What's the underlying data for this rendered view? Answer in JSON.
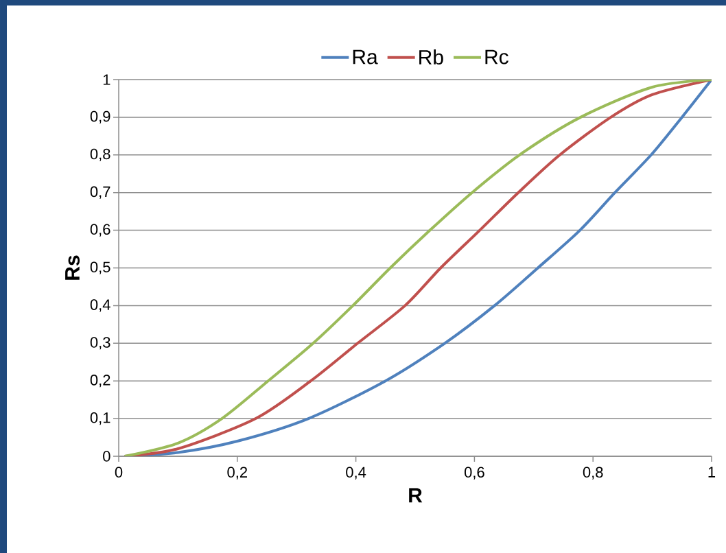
{
  "chart_data": {
    "type": "line",
    "xlabel": "R",
    "ylabel": "Rs",
    "series": [
      {
        "name": "Ra",
        "color": "#4f81bd",
        "x": [
          0.01,
          0.1,
          0.2,
          0.32,
          0.45,
          0.55,
          0.634,
          0.707,
          0.778,
          0.837,
          0.898,
          0.95,
          1
        ],
        "values": [
          0,
          0.01,
          0.04,
          0.1,
          0.2,
          0.3,
          0.4,
          0.5,
          0.6,
          0.7,
          0.8,
          0.9,
          1
        ]
      },
      {
        "name": "Rb",
        "color": "#c0504d",
        "x": [
          0.01,
          0.1,
          0.231,
          0.324,
          0.403,
          0.483,
          0.543,
          0.609,
          0.674,
          0.744,
          0.83,
          0.9,
          1
        ],
        "values": [
          0,
          0.02,
          0.1,
          0.2,
          0.3,
          0.4,
          0.5,
          0.6,
          0.7,
          0.8,
          0.9,
          0.96,
          1
        ]
      },
      {
        "name": "Rc",
        "color": "#9bbb59",
        "x": [
          0.01,
          0.1,
          0.174,
          0.252,
          0.328,
          0.395,
          0.458,
          0.525,
          0.596,
          0.676,
          0.779,
          0.9,
          1
        ],
        "values": [
          0,
          0.035,
          0.1,
          0.2,
          0.3,
          0.4,
          0.5,
          0.6,
          0.7,
          0.8,
          0.9,
          0.98,
          1
        ]
      }
    ],
    "xlim": [
      0,
      1
    ],
    "ylim": [
      0,
      1
    ],
    "xticks": [
      0,
      {
        "value": 0.2,
        "label": "0,2"
      },
      {
        "value": 0.4,
        "label": "0,4"
      },
      {
        "value": 0.6,
        "label": "0,6"
      },
      {
        "value": 0.8,
        "label": "0,8"
      },
      1
    ],
    "yticks": [
      0,
      {
        "value": 0.1,
        "label": "0,1"
      },
      {
        "value": 0.2,
        "label": "0,2"
      },
      {
        "value": 0.3,
        "label": "0,3"
      },
      {
        "value": 0.4,
        "label": "0,4"
      },
      {
        "value": 0.5,
        "label": "0,5"
      },
      {
        "value": 0.6,
        "label": "0,6"
      },
      {
        "value": 0.7,
        "label": "0,7"
      },
      {
        "value": 0.8,
        "label": "0,8"
      },
      {
        "value": 0.9,
        "label": "0,9"
      },
      1
    ],
    "grid": "y",
    "legend": "top",
    "marker": "none",
    "line_style": "solid"
  }
}
